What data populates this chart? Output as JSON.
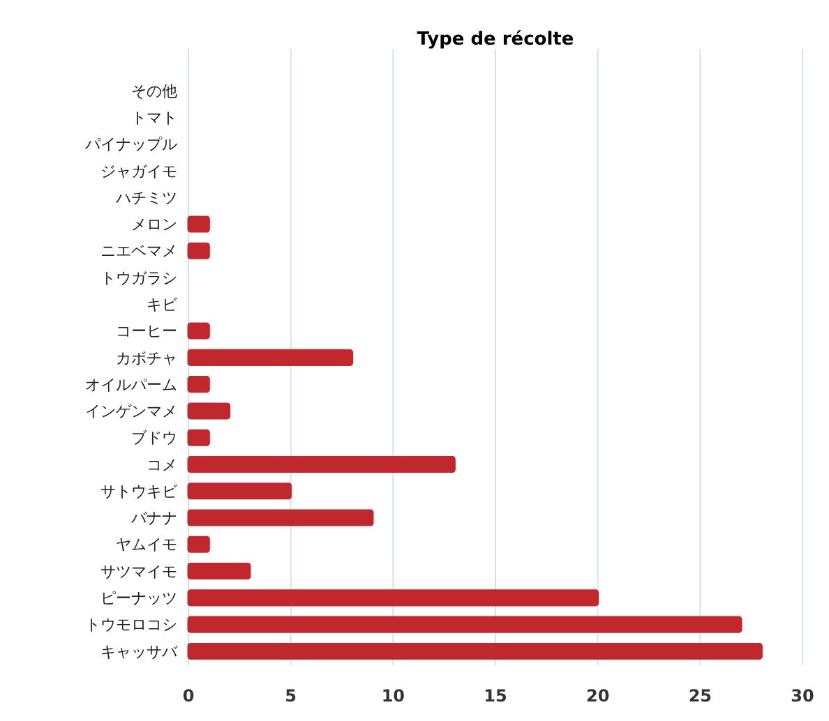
{
  "chart_data": {
    "type": "bar",
    "orientation": "horizontal",
    "title": "Type de récolte",
    "categories": [
      "その他",
      "トマト",
      "パイナップル",
      "ジャガイモ",
      "ハチミツ",
      "メロン",
      "ニエベマメ",
      "トウガラシ",
      "キビ",
      "コーヒー",
      "カボチャ",
      "オイルパーム",
      "インゲンマメ",
      "ブドウ",
      "コメ",
      "サトウキビ",
      "バナナ",
      "ヤムイモ",
      "サツマイモ",
      "ピーナッツ",
      "トウモロコシ",
      "キャッサバ"
    ],
    "values": [
      0,
      0,
      0,
      0,
      0,
      1,
      1,
      0,
      0,
      1,
      8,
      1,
      2,
      1,
      13,
      5,
      9,
      1,
      3,
      20,
      27,
      28
    ],
    "color": "#c0282d",
    "xlim": [
      0,
      30
    ],
    "xticks": [
      0,
      5,
      10,
      15,
      20,
      25,
      30
    ],
    "grid": "x"
  }
}
